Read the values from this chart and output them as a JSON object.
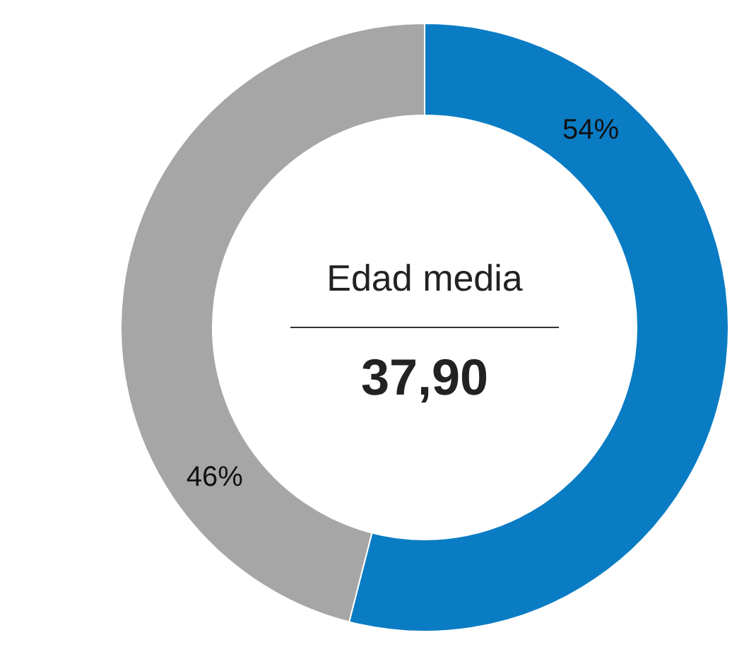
{
  "chart_data": {
    "type": "donut",
    "categories": [
      null,
      null
    ],
    "values": [
      54,
      46
    ],
    "colors": [
      "#0a7cc4",
      "#a6a6a6"
    ],
    "value_labels": [
      "54%",
      "46%"
    ],
    "annotations": [
      "Edad media",
      "37,90"
    ]
  }
}
